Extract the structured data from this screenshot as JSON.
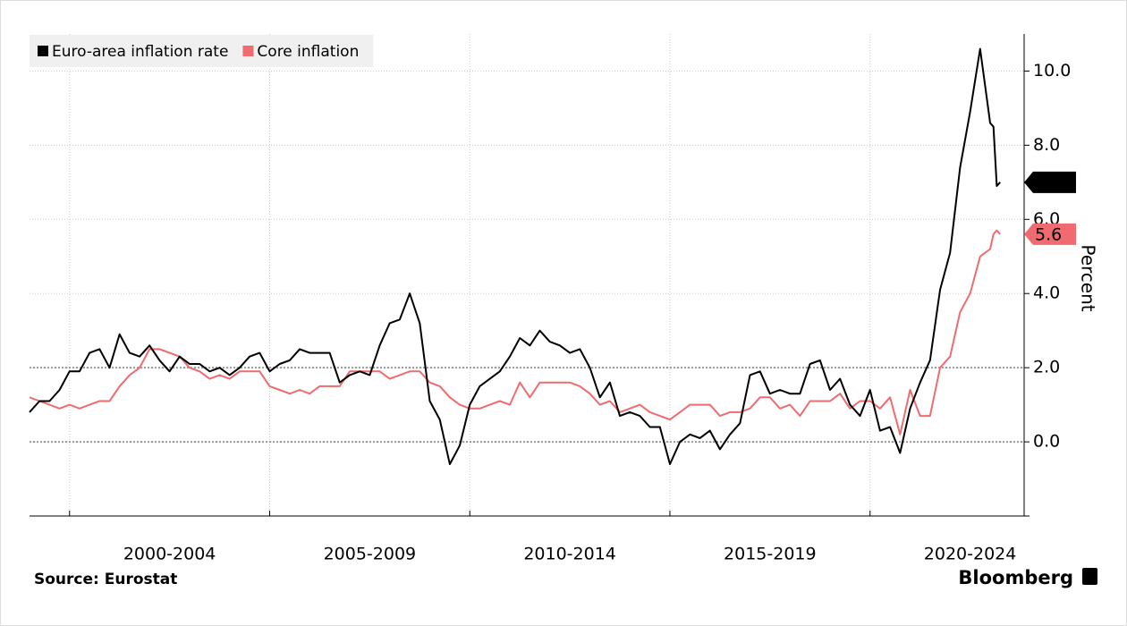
{
  "chart_data": {
    "type": "line",
    "y_label": "Percent",
    "source": "Source: Eurostat",
    "brand": "Bloomberg",
    "x": [
      1999,
      1999.25,
      1999.5,
      1999.75,
      2000,
      2000.25,
      2000.5,
      2000.75,
      2001,
      2001.25,
      2001.5,
      2001.75,
      2002,
      2002.25,
      2002.5,
      2002.75,
      2003,
      2003.25,
      2003.5,
      2003.75,
      2004,
      2004.25,
      2004.5,
      2004.75,
      2005,
      2005.25,
      2005.5,
      2005.75,
      2006,
      2006.25,
      2006.5,
      2006.75,
      2007,
      2007.25,
      2007.5,
      2007.75,
      2008,
      2008.25,
      2008.5,
      2008.75,
      2009,
      2009.25,
      2009.5,
      2009.75,
      2010,
      2010.25,
      2010.5,
      2010.75,
      2011,
      2011.25,
      2011.5,
      2011.75,
      2012,
      2012.25,
      2012.5,
      2012.75,
      2013,
      2013.25,
      2013.5,
      2013.75,
      2014,
      2014.25,
      2014.5,
      2014.75,
      2015,
      2015.25,
      2015.5,
      2015.75,
      2016,
      2016.25,
      2016.5,
      2016.75,
      2017,
      2017.25,
      2017.5,
      2017.75,
      2018,
      2018.25,
      2018.5,
      2018.75,
      2019,
      2019.25,
      2019.5,
      2019.75,
      2020,
      2020.25,
      2020.5,
      2020.75,
      2021,
      2021.25,
      2021.5,
      2021.75,
      2022,
      2022.25,
      2022.5,
      2022.75,
      2023,
      2023.083,
      2023.167,
      2023.25
    ],
    "series": [
      {
        "name": "Euro-area inflation rate",
        "color": "#000000",
        "last_label": "7.0",
        "values": [
          0.8,
          1.1,
          1.1,
          1.4,
          1.9,
          1.9,
          2.4,
          2.5,
          2.0,
          2.9,
          2.4,
          2.3,
          2.6,
          2.2,
          1.9,
          2.3,
          2.1,
          2.1,
          1.9,
          2.0,
          1.8,
          2.0,
          2.3,
          2.4,
          1.9,
          2.1,
          2.2,
          2.5,
          2.4,
          2.4,
          2.4,
          1.6,
          1.8,
          1.9,
          1.8,
          2.6,
          3.2,
          3.3,
          4.0,
          3.2,
          1.1,
          0.6,
          -0.6,
          -0.1,
          1.0,
          1.5,
          1.7,
          1.9,
          2.3,
          2.8,
          2.6,
          3.0,
          2.7,
          2.6,
          2.4,
          2.5,
          2.0,
          1.2,
          1.6,
          0.7,
          0.8,
          0.7,
          0.4,
          0.4,
          -0.6,
          0.0,
          0.2,
          0.1,
          0.3,
          -0.2,
          0.2,
          0.5,
          1.8,
          1.9,
          1.3,
          1.4,
          1.3,
          1.3,
          2.1,
          2.2,
          1.4,
          1.7,
          1.0,
          0.7,
          1.4,
          0.3,
          0.4,
          -0.3,
          0.9,
          1.6,
          2.2,
          4.1,
          5.1,
          7.4,
          8.9,
          10.6,
          8.6,
          8.5,
          6.9,
          7.0
        ]
      },
      {
        "name": "Core inflation",
        "color": "#f06b6f",
        "last_label": "5.6",
        "values": [
          1.2,
          1.1,
          1.0,
          0.9,
          1.0,
          0.9,
          1.0,
          1.1,
          1.1,
          1.5,
          1.8,
          2.0,
          2.5,
          2.5,
          2.4,
          2.3,
          2.0,
          1.9,
          1.7,
          1.8,
          1.7,
          1.9,
          1.9,
          1.9,
          1.5,
          1.4,
          1.3,
          1.4,
          1.3,
          1.5,
          1.5,
          1.5,
          1.9,
          1.9,
          1.9,
          1.9,
          1.7,
          1.8,
          1.9,
          1.9,
          1.6,
          1.5,
          1.2,
          1.0,
          0.9,
          0.9,
          1.0,
          1.1,
          1.0,
          1.6,
          1.2,
          1.6,
          1.6,
          1.6,
          1.6,
          1.5,
          1.3,
          1.0,
          1.1,
          0.8,
          0.9,
          1.0,
          0.8,
          0.7,
          0.6,
          0.8,
          1.0,
          1.0,
          1.0,
          0.7,
          0.8,
          0.8,
          0.9,
          1.2,
          1.2,
          0.9,
          1.0,
          0.7,
          1.1,
          1.1,
          1.1,
          1.3,
          0.9,
          1.1,
          1.1,
          0.9,
          1.2,
          0.2,
          1.4,
          0.7,
          0.7,
          2.0,
          2.3,
          3.5,
          4.0,
          5.0,
          5.2,
          5.6,
          5.7,
          5.6
        ]
      }
    ],
    "xlim": [
      1999,
      2023.85
    ],
    "xgrid": [
      2000,
      2005,
      2010,
      2015,
      2020
    ],
    "xticks": [
      {
        "value": 2002.5,
        "label": "2000-2004"
      },
      {
        "value": 2007.5,
        "label": "2005-2009"
      },
      {
        "value": 2012.5,
        "label": "2010-2014"
      },
      {
        "value": 2017.5,
        "label": "2015-2019"
      },
      {
        "value": 2022.5,
        "label": "2020-2024"
      }
    ],
    "ylim": [
      -2,
      11
    ],
    "yticks": [
      {
        "value": 0,
        "label": "0.0"
      },
      {
        "value": 2,
        "label": "2.0"
      },
      {
        "value": 4,
        "label": "4.0"
      },
      {
        "value": 6,
        "label": "6.0"
      },
      {
        "value": 8,
        "label": "8.0"
      },
      {
        "value": 10,
        "label": "10.0"
      }
    ],
    "reference_lines": [
      0,
      2
    ],
    "grid": true,
    "legend": "top-left"
  }
}
